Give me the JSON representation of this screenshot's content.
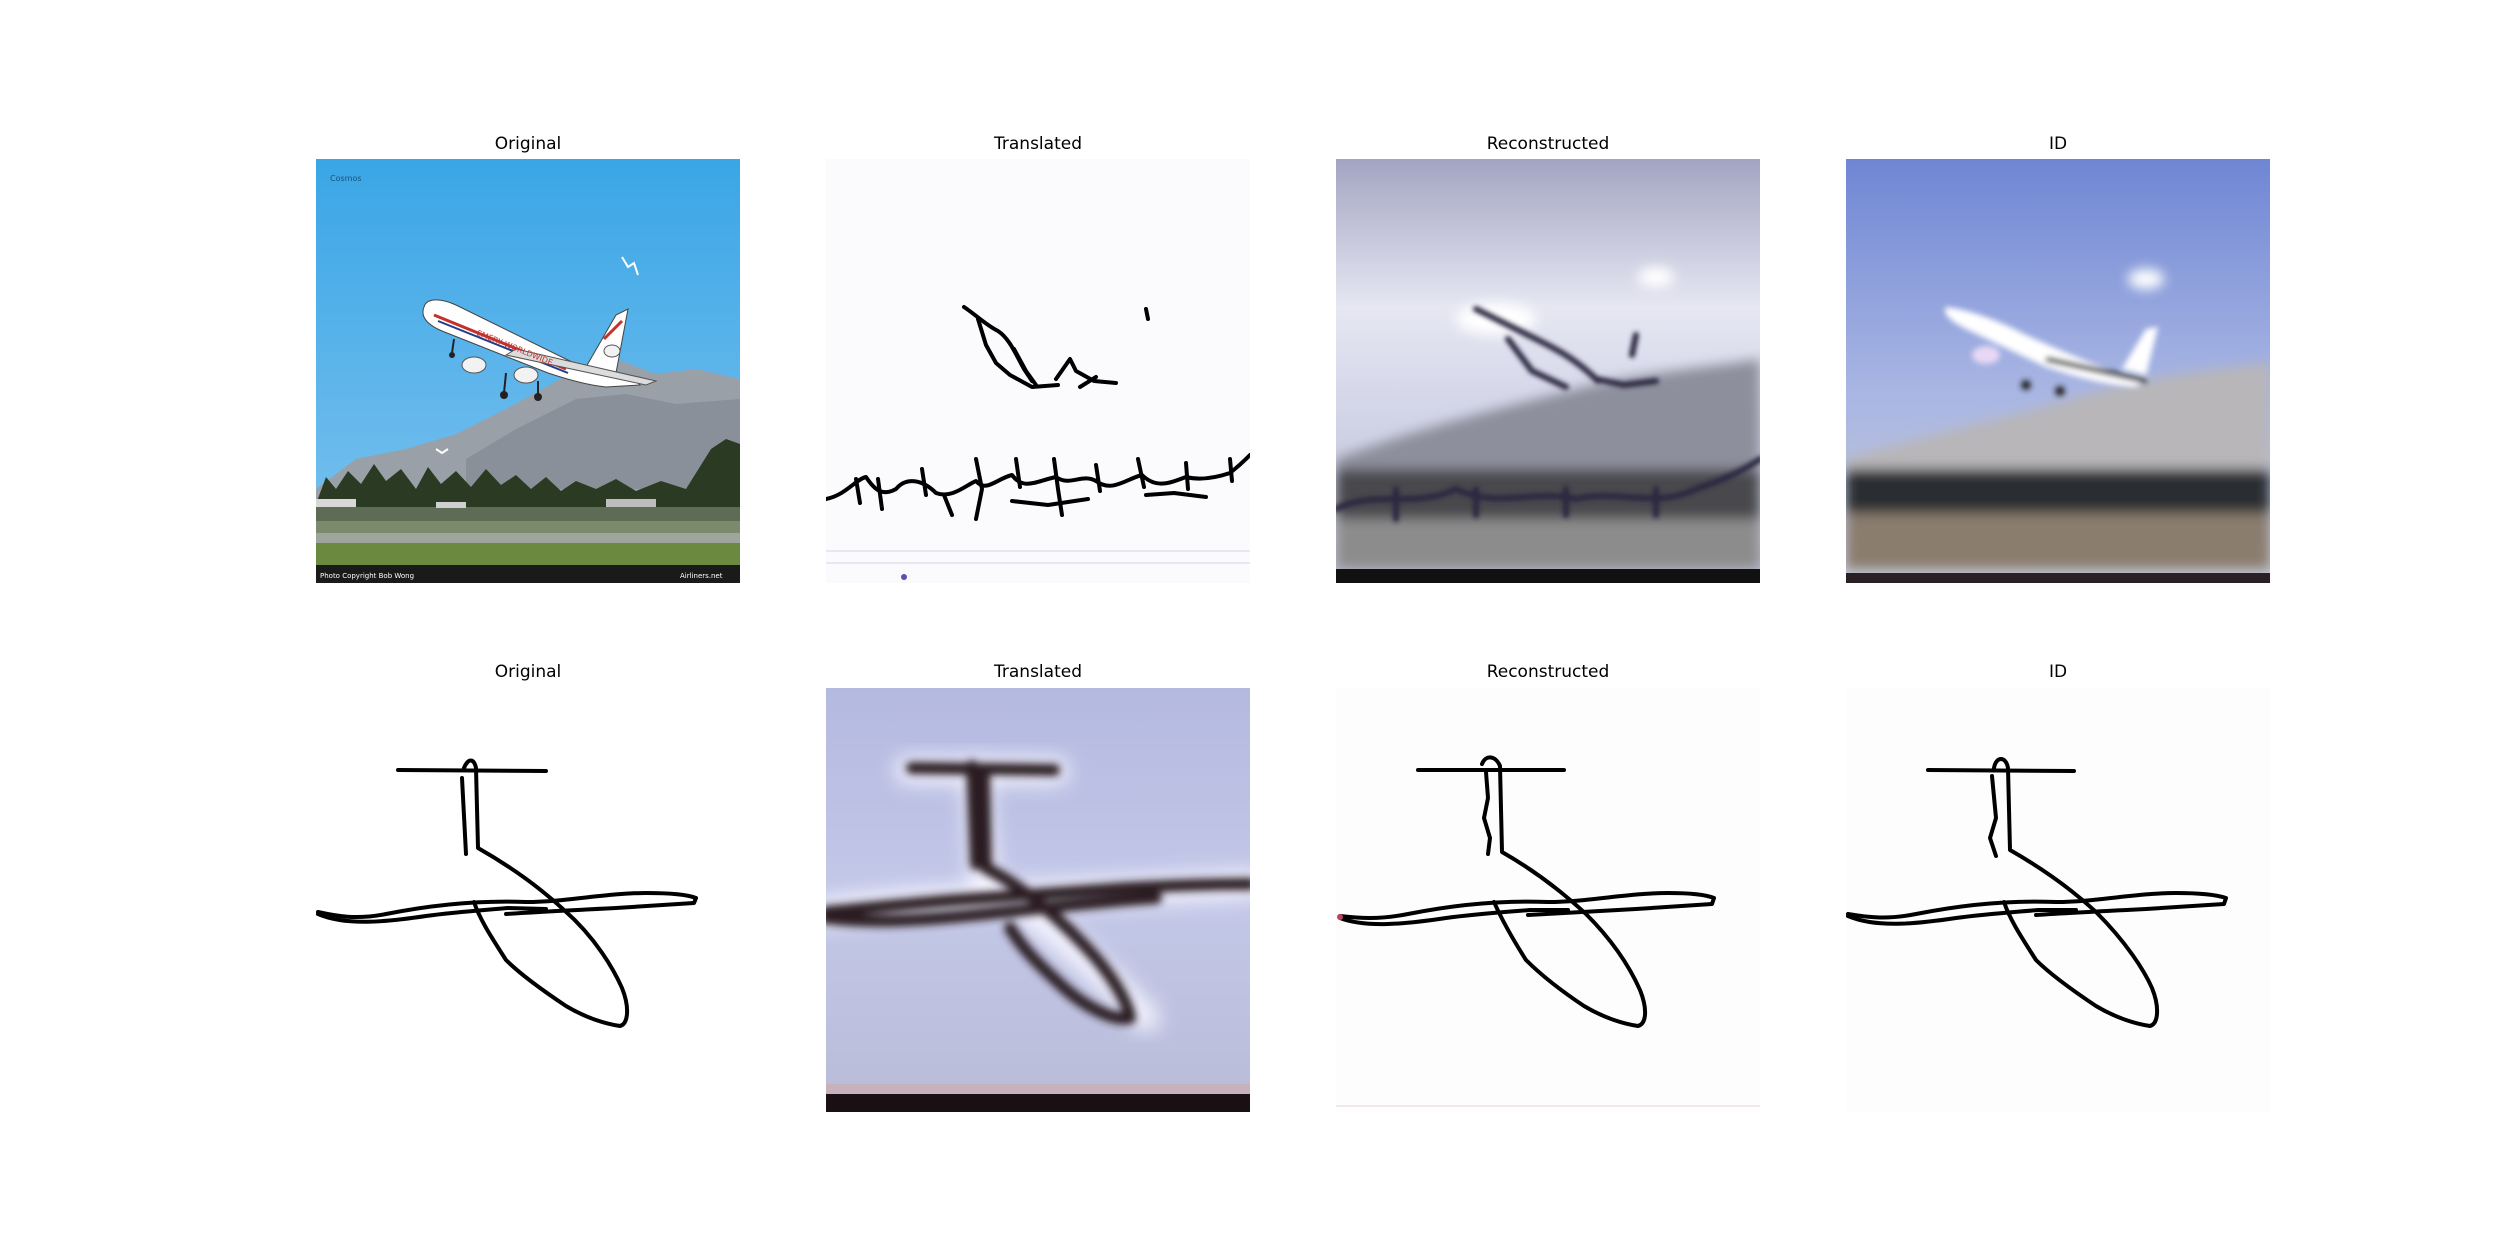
{
  "rows": [
    {
      "titles": [
        "Original",
        "Translated",
        "Reconstructed",
        "ID"
      ],
      "watermarks": {
        "corner_label": "Cosmos",
        "photo_credit": "Photo Copyright Bob Wong",
        "site_credit": "Airliners.net",
        "fuselage_text": "EMERY WORLDWIDE"
      }
    },
    {
      "titles": [
        "Original",
        "Translated",
        "Reconstructed",
        "ID"
      ]
    }
  ],
  "colors": {
    "sky_blue": "#3aa6e6",
    "sky_blue_dark": "#2f8fd6",
    "mountain_gray": "#9aa0a8",
    "treeline": "#2b3a22",
    "grass": "#6c8a3f",
    "sketch_stroke": "#000000",
    "lavender_bg": "#b9bedf",
    "gray_sky": "#c9cbe0",
    "blue_gray_sky": "#7d8fc9"
  }
}
